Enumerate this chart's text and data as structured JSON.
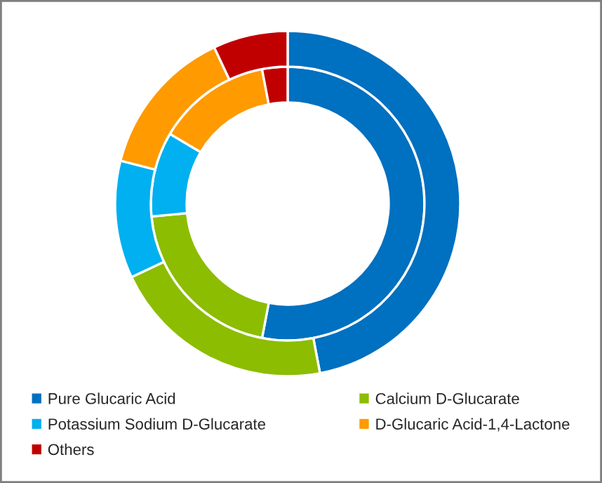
{
  "chart_data": {
    "type": "donut",
    "categories": [
      "Pure Glucaric Acid",
      "Calcium D-Glucarate",
      "Potassium Sodium D-Glucarate",
      "D-Glucaric Acid-1,4-Lactone",
      "Others"
    ],
    "colors": [
      "#0070c0",
      "#8cbd00",
      "#00b0f0",
      "#ff9a00",
      "#c00000"
    ],
    "series": [
      {
        "values": [
          53,
          20.5,
          10,
          13.5,
          3
        ]
      },
      {
        "values": [
          47,
          21,
          11,
          14,
          7
        ]
      }
    ],
    "legend": "bottom"
  }
}
